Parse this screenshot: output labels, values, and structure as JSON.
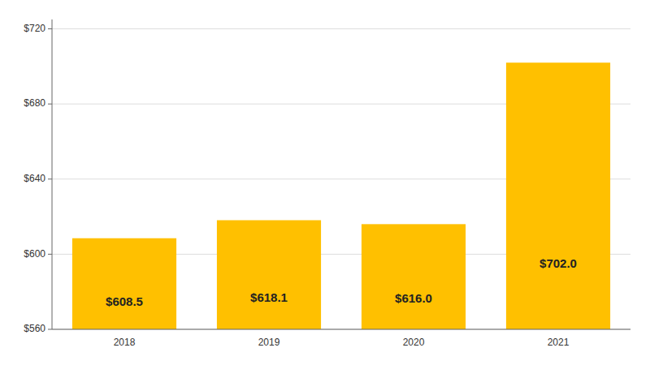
{
  "chart_data": {
    "type": "bar",
    "categories": [
      "2018",
      "2019",
      "2020",
      "2021"
    ],
    "values": [
      608.5,
      618.1,
      616.0,
      702.0
    ],
    "value_labels": [
      "$608.5",
      "$618.1",
      "$616.0",
      "$702.0"
    ],
    "data_labels": true,
    "color": "#FFC000",
    "ylim": [
      560,
      725
    ],
    "yticks": [
      {
        "value": 560,
        "label": "$560"
      },
      {
        "value": 600,
        "label": "$600"
      },
      {
        "value": 640,
        "label": "$640"
      },
      {
        "value": 680,
        "label": "$680"
      },
      {
        "value": 720,
        "label": "$720"
      }
    ],
    "grid": true
  }
}
